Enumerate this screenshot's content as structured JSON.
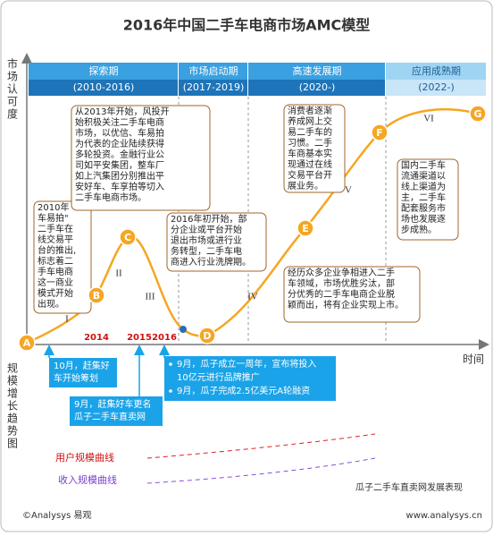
{
  "title": "2016年中国二手车电商市场AMC模型",
  "y_axis_top": "市场认可度",
  "y_axis_bottom": "规模增长趋势图",
  "x_axis": "时间",
  "phases": [
    {
      "name": "探索期",
      "period": "(2010-2016)"
    },
    {
      "name": "市场启动期",
      "period": "(2017-2019)"
    },
    {
      "name": "高速发展期",
      "period": "(2020-)"
    },
    {
      "name": "应用成熟期",
      "period": "(2022-)"
    }
  ],
  "stages": [
    "I",
    "II",
    "III",
    "IV",
    "V",
    "VI"
  ],
  "points": [
    "A",
    "B",
    "C",
    "D",
    "E",
    "F",
    "G"
  ],
  "years": [
    "2014",
    "2015",
    "2016"
  ],
  "callouts": [
    {
      "lines": [
        "2010年",
        "车易拍\"",
        "二手车在",
        "线交易平",
        "台的推出,",
        "标志着二",
        "手车电商",
        "这一商业",
        "模式开始",
        "出现。"
      ]
    },
    {
      "lines": [
        "从2013年开始，风投开",
        "始积极关注二手车电商",
        "市场，以优信、车易拍",
        "为代表的企业陆续获得",
        "多轮投资。金融行业公",
        "司如平安集团，整车厂",
        "如上汽集团分别推出平",
        "安好车、车享拍等切入",
        "二手车电商市场。"
      ]
    },
    {
      "lines": [
        "2016年初开始，部",
        "分企业或平台开始",
        "退出市场或进行业",
        "务转型，二手车电",
        "商进入行业洗牌期。"
      ]
    },
    {
      "lines": [
        "经历众多企业争相进入二手",
        "车领域，市场优胜劣汰，部",
        "分优秀的二手车电商企业脱",
        "颖而出，将有企业实现上市。"
      ]
    },
    {
      "lines": [
        "消费者逐渐",
        "养成网上交",
        "易二手车的",
        "习惯。二手",
        "车商基本实",
        "现通过在线",
        "交易平台开",
        "展业务。"
      ]
    },
    {
      "lines": [
        "国内二手车",
        "流通渠道以",
        "线上渠道为",
        "主，二手车",
        "配套服务市",
        "场也发展逐",
        "步成熟。"
      ]
    }
  ],
  "events": [
    {
      "lines": [
        "10月，赶集好",
        "车开始筹划"
      ]
    },
    {
      "lines": [
        "9月，赶集好车更名",
        "瓜子二手车直卖网"
      ]
    },
    {
      "lines": [
        "9月，瓜子成立一周年，宣布将投入",
        "10亿元进行品牌推广",
        "9月，瓜子完成2.5亿美元A轮融资"
      ]
    }
  ],
  "legend": [
    "用户规模曲线",
    "收入规模曲线"
  ],
  "caption": "瓜子二手车直卖网发展表现",
  "source": "©Analysys 易观",
  "url": "www.analysys.cn"
}
